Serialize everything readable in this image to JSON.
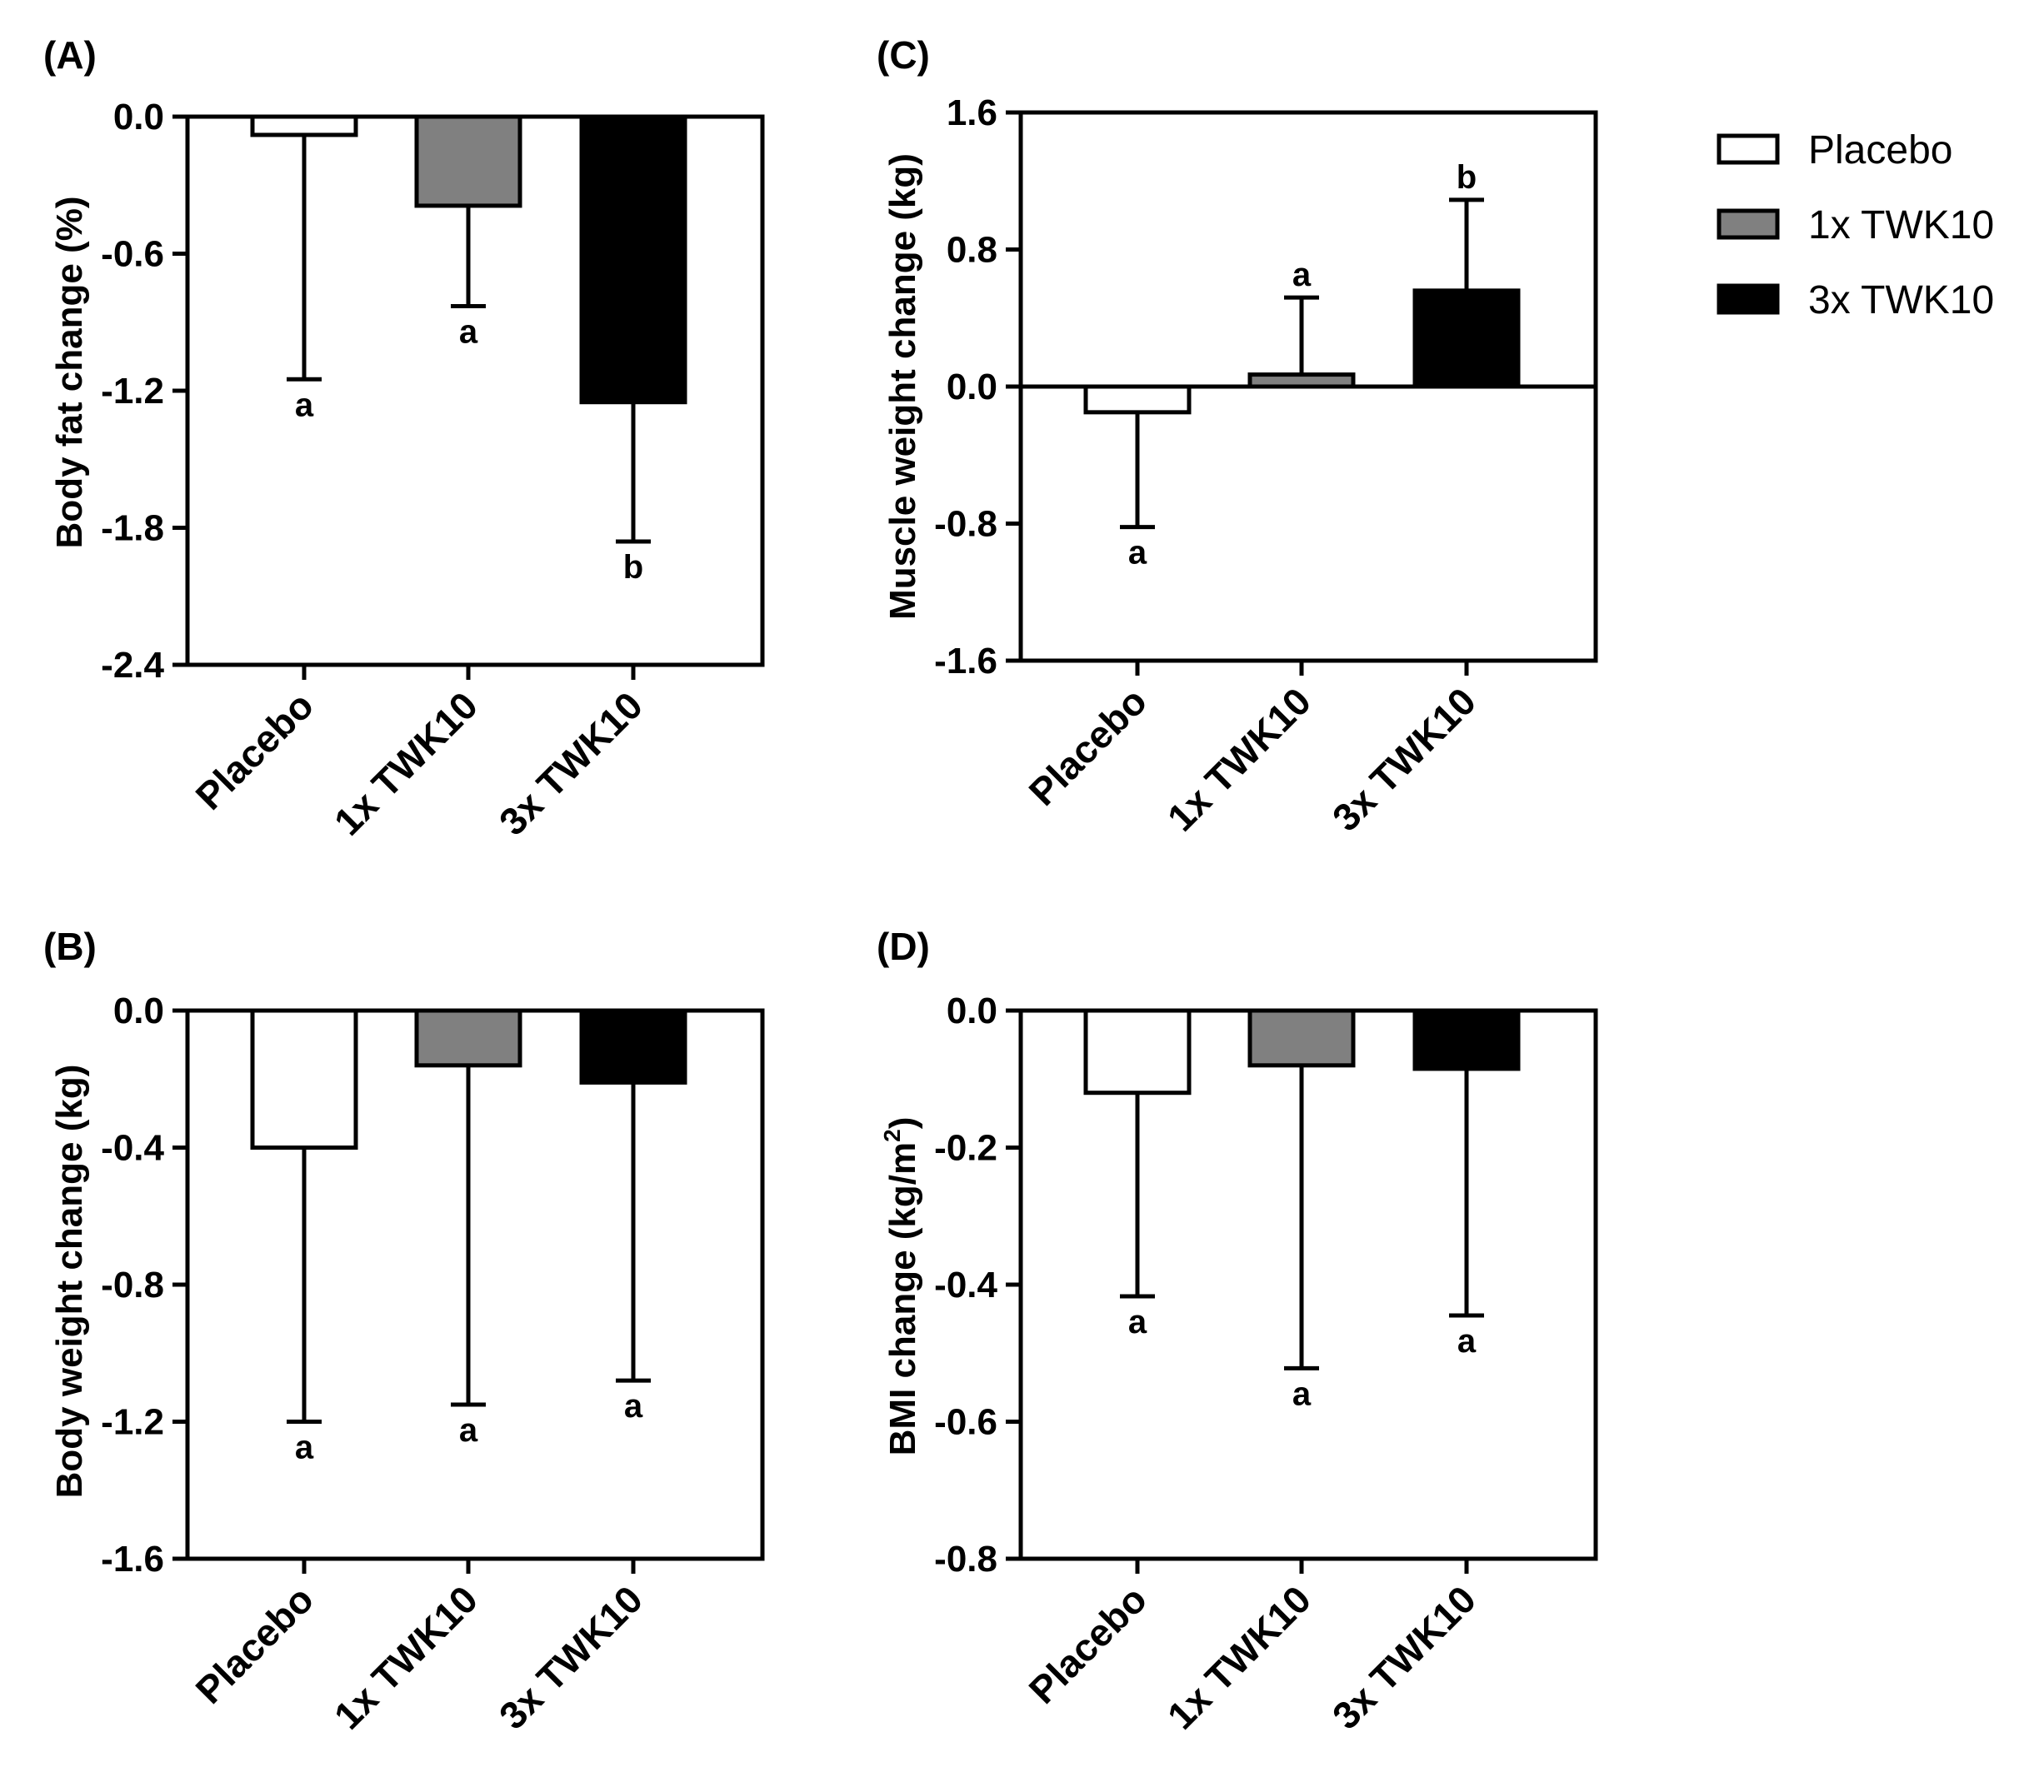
{
  "colors": {
    "Placebo": "#ffffff",
    "1x TWK10": "#808080",
    "3x TWK10": "#000000"
  },
  "legend": {
    "items": [
      {
        "label": "Placebo",
        "color": "#ffffff"
      },
      {
        "label": "1x TWK10",
        "color": "#808080"
      },
      {
        "label": "3x TWK10",
        "color": "#000000"
      }
    ]
  },
  "chart_data": [
    {
      "panel": "(A)",
      "type": "bar",
      "ylabel": "Body fat change (%)",
      "categories": [
        "Placebo",
        "1x TWK10",
        "3x TWK10"
      ],
      "values": [
        -0.08,
        -0.39,
        -1.25
      ],
      "errors": [
        1.07,
        0.44,
        0.61
      ],
      "significance": [
        "a",
        "a",
        "b"
      ],
      "ylim": [
        -2.4,
        0.0
      ],
      "yticks": [
        "0.0",
        "-0.6",
        "-1.2",
        "-1.8",
        "-2.4"
      ],
      "legend_entries": [
        "Placebo",
        "1x TWK10",
        "3x TWK10"
      ]
    },
    {
      "panel": "(B)",
      "type": "bar",
      "ylabel": "Body weight change (kg)",
      "categories": [
        "Placebo",
        "1x TWK10",
        "3x TWK10"
      ],
      "values": [
        -0.4,
        -0.16,
        -0.21
      ],
      "errors": [
        0.8,
        0.99,
        0.87
      ],
      "significance": [
        "a",
        "a",
        "a"
      ],
      "ylim": [
        -1.6,
        0.0
      ],
      "yticks": [
        "0.0",
        "-0.4",
        "-0.8",
        "-1.2",
        "-1.6"
      ]
    },
    {
      "panel": "(C)",
      "type": "bar",
      "ylabel": "Muscle weight change (kg)",
      "categories": [
        "Placebo",
        "1x TWK10",
        "3x TWK10"
      ],
      "values": [
        -0.15,
        0.07,
        0.56
      ],
      "errors": [
        0.67,
        0.45,
        0.53
      ],
      "significance": [
        "a",
        "a",
        "b"
      ],
      "ylim": [
        -1.6,
        1.6
      ],
      "yticks": [
        "1.6",
        "0.8",
        "0.0",
        "-0.8",
        "-1.6"
      ]
    },
    {
      "panel": "(D)",
      "type": "bar",
      "ylabel": "BMI change (kg/m",
      "ylabel_sup": "2",
      "ylabel_end": ")",
      "categories": [
        "Placebo",
        "1x TWK10",
        "3x TWK10"
      ],
      "values": [
        -0.12,
        -0.08,
        -0.085
      ],
      "errors": [
        0.297,
        0.442,
        0.36
      ],
      "significance": [
        "a",
        "a",
        "a"
      ],
      "ylim": [
        -0.8,
        0.0
      ],
      "yticks": [
        "0.0",
        "-0.2",
        "-0.4",
        "-0.6",
        "-0.8"
      ]
    }
  ]
}
